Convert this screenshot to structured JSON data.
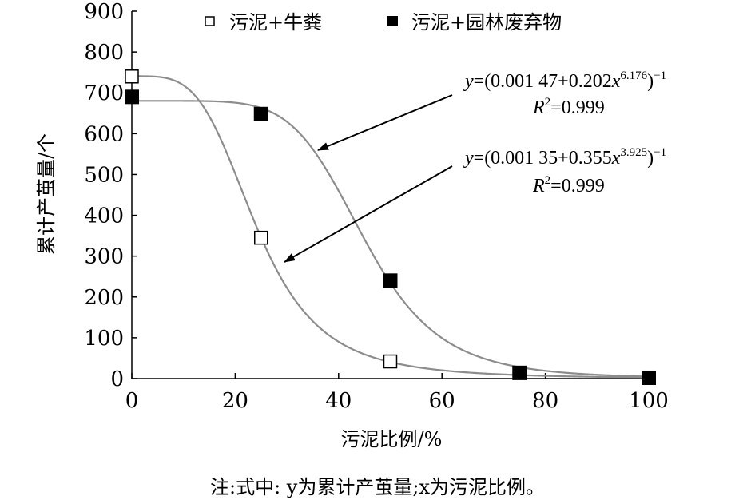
{
  "chart_data": {
    "type": "scatter",
    "xlabel": "污泥比例/%",
    "ylabel": "累计产茧量/个",
    "xlim": [
      0,
      100
    ],
    "ylim": [
      0,
      900
    ],
    "x_ticks": [
      "0",
      "20",
      "40",
      "60",
      "80",
      "100"
    ],
    "y_ticks": [
      "0",
      "100",
      "200",
      "300",
      "400",
      "500",
      "600",
      "700",
      "800",
      "900"
    ],
    "grid": false,
    "legend_position": "top",
    "series": [
      {
        "name": "污泥+牛粪",
        "marker": "open-square",
        "x": [
          0,
          25,
          50,
          75,
          100
        ],
        "y": [
          740,
          345,
          42,
          14,
          2
        ],
        "fit": {
          "a": 0.00135,
          "b": 0.355,
          "c": 3.925
        },
        "equation": {
          "lhs": "y",
          "mid": "=(0.001 35+0.355",
          "var": "x",
          "exp": "3.925",
          "close": ")",
          "neg": "−1"
        },
        "r2": {
          "r": "R",
          "sup": "2",
          "val": "=0.999"
        }
      },
      {
        "name": "污泥+园林废弃物",
        "marker": "filled-square",
        "x": [
          0,
          25,
          50,
          75,
          100
        ],
        "y": [
          690,
          648,
          240,
          14,
          2
        ],
        "fit": {
          "a": 0.00147,
          "b": 0.202,
          "c": 6.176
        },
        "equation": {
          "lhs": "y",
          "mid": "=(0.001 47+0.202",
          "var": "x",
          "exp": "6.176",
          "close": ")",
          "neg": "−1"
        },
        "r2": {
          "r": "R",
          "sup": "2",
          "val": "=0.999"
        }
      }
    ],
    "note": "注:式中: y为累计产茧量;x为污泥比例。",
    "colors": {
      "fit_line": "#8c8c8c",
      "axis": "#000000",
      "arrow": "#000000"
    }
  }
}
